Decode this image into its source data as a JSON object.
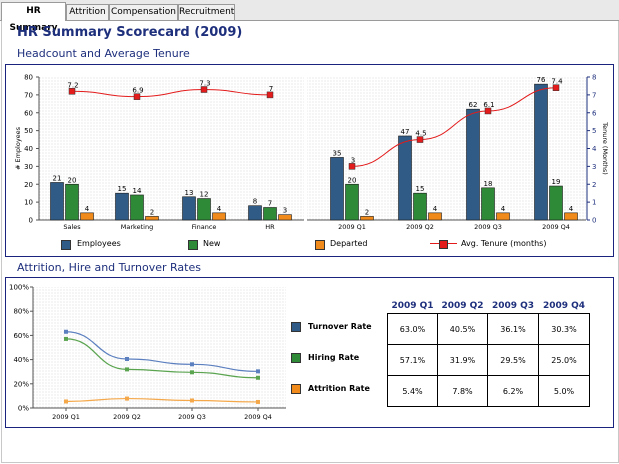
{
  "tabs": [
    {
      "label": "HR Summary",
      "active": true
    },
    {
      "label": "Attrition",
      "active": false
    },
    {
      "label": "Compensation",
      "active": false
    },
    {
      "label": "Recruitment",
      "active": false
    }
  ],
  "page": {
    "title": "HR Summary Scorecard (2009)"
  },
  "sections": {
    "headcount": "Headcount and Average Tenure",
    "attrition": "Attrition, Hire and Turnover Rates"
  },
  "colors": {
    "employees": "#2f5b86",
    "new": "#2f8a37",
    "departed": "#f08a1a",
    "tenure": "#e31b1b",
    "turnover_line": "#5b7fbf",
    "hiring_line": "#5aa44f",
    "attrition_line": "#f5a84a",
    "title": "#1e2f7c"
  },
  "chart_data": [
    {
      "type": "bar",
      "panel": "department",
      "categories": [
        "Sales",
        "Marketing",
        "Finance",
        "HR"
      ],
      "series": [
        {
          "name": "Employees",
          "values": [
            21,
            15,
            13,
            8
          ]
        },
        {
          "name": "New",
          "values": [
            20,
            14,
            12,
            7
          ]
        },
        {
          "name": "Departed",
          "values": [
            4,
            2,
            4,
            3
          ]
        },
        {
          "name": "Avg. Tenure (months)",
          "values": [
            7.2,
            6.9,
            7.3,
            7.0
          ]
        }
      ],
      "ylabel": "# Employees",
      "ylim": [
        0,
        80
      ],
      "yticks": [
        0,
        10,
        20,
        30,
        40,
        50,
        60,
        70,
        80
      ],
      "grid": false
    },
    {
      "type": "bar",
      "panel": "quarter",
      "categories": [
        "2009 Q1",
        "2009 Q2",
        "2009 Q3",
        "2009 Q4"
      ],
      "series": [
        {
          "name": "Employees",
          "values": [
            35,
            47,
            62,
            76
          ]
        },
        {
          "name": "New",
          "values": [
            20,
            15,
            18,
            19
          ]
        },
        {
          "name": "Departed",
          "values": [
            2,
            4,
            4,
            4
          ]
        },
        {
          "name": "Avg. Tenure (months)",
          "values": [
            3.0,
            4.5,
            6.1,
            7.4
          ]
        }
      ],
      "y2label": "Tenure (Months)",
      "y2lim": [
        0,
        8
      ],
      "y2ticks": [
        0,
        1,
        2,
        3,
        4,
        5,
        6,
        7,
        8
      ],
      "legend": [
        "Employees",
        "New",
        "Departed",
        "Avg. Tenure (months)"
      ],
      "legend_position": "bottom"
    },
    {
      "type": "line",
      "panel": "rates",
      "categories": [
        "2009 Q1",
        "2009 Q2",
        "2009 Q3",
        "2009 Q4"
      ],
      "series": [
        {
          "name": "Turnover Rate",
          "values": [
            63.0,
            40.5,
            36.1,
            30.3
          ]
        },
        {
          "name": "Hiring Rate",
          "values": [
            57.1,
            31.9,
            29.5,
            25.0
          ]
        },
        {
          "name": "Attrition Rate",
          "values": [
            5.4,
            7.8,
            6.2,
            5.0
          ]
        }
      ],
      "ylim": [
        0,
        100
      ],
      "yticks": [
        "0%",
        "20%",
        "40%",
        "60%",
        "80%",
        "100%"
      ],
      "grid": false
    }
  ],
  "rates_table": {
    "headers": [
      "2009 Q1",
      "2009 Q2",
      "2009 Q3",
      "2009 Q4"
    ],
    "rows": [
      {
        "label": "Turnover Rate",
        "values": [
          "63.0%",
          "40.5%",
          "36.1%",
          "30.3%"
        ]
      },
      {
        "label": "Hiring Rate",
        "values": [
          "57.1%",
          "31.9%",
          "29.5%",
          "25.0%"
        ]
      },
      {
        "label": "Attrition Rate",
        "values": [
          "5.4%",
          "7.8%",
          "6.2%",
          "5.0%"
        ]
      }
    ]
  }
}
